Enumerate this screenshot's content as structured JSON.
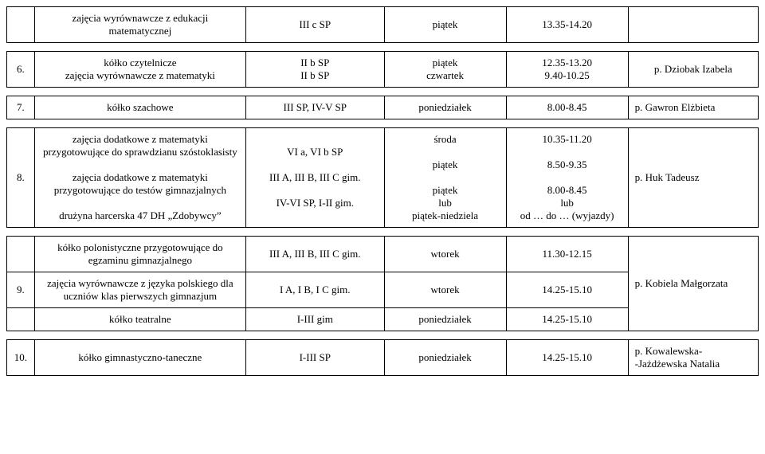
{
  "table": {
    "font_family": "Times New Roman",
    "font_size_pt": 10,
    "border_color": "#000000",
    "background_color": "#ffffff",
    "text_color": "#000000",
    "column_roles": [
      "num",
      "desc",
      "group",
      "day",
      "time",
      "teacher"
    ],
    "blocks": [
      {
        "rows": [
          {
            "num": "",
            "desc": "zajęcia wyrównawcze z edukacji matematycznej",
            "group": "III c SP",
            "day": "piątek",
            "time": "13.35-14.20",
            "teacher": ""
          }
        ]
      },
      {
        "rows": [
          {
            "num": "6.",
            "desc": "kółko czytelnicze\nzajęcia wyrównawcze z matematyki",
            "group": "II b SP\nII b SP",
            "day": "piątek\nczwartek",
            "time": "12.35-13.20\n9.40-10.25",
            "teacher": "p. Dziobak Izabela"
          }
        ]
      },
      {
        "rows": [
          {
            "num": "7.",
            "desc": "kółko szachowe",
            "group": "III  SP, IV-V SP",
            "day": "poniedziałek",
            "time": "8.00-8.45",
            "teacher": "p. Gawron Elżbieta"
          }
        ]
      },
      {
        "rows": [
          {
            "num": "8.",
            "desc": "zajęcia dodatkowe z matematyki przygotowujące do sprawdzianu szóstoklasisty\n\nzajęcia dodatkowe z matematyki przygotowujące do testów gimnazjalnych\n\ndrużyna harcerska 47 DH „Zdobywcy”",
            "group": "VI a, VI b SP\n\nIII A, III B, III C gim.\n\nIV-VI SP, I-II gim.",
            "day": "środa\n\npiątek\n\npiątek\nlub\npiątek-niedziela",
            "time": "10.35-11.20\n\n8.50-9.35\n\n8.00-8.45\nlub\nod …  do … (wyjazdy)",
            "teacher": "p. Huk Tadeusz"
          }
        ]
      },
      {
        "rows": [
          {
            "num": "",
            "desc": "kółko polonistyczne przygotowujące do egzaminu gimnazjalnego",
            "group": "III A, III B, III C gim.",
            "day": "wtorek",
            "time": "11.30-12.15",
            "teacher": "",
            "teacher_rowspan": 3,
            "teacher_text": "p. Kobiela Małgorzata"
          },
          {
            "num": "9.",
            "desc": "zajęcia wyrównawcze z języka polskiego dla uczniów klas pierwszych gimnazjum",
            "group": "I A, I B, I C gim.",
            "day": "wtorek",
            "time": "14.25-15.10"
          },
          {
            "num": "",
            "desc": "kółko teatralne",
            "group": "I-III gim",
            "day": "poniedziałek",
            "time": "14.25-15.10"
          }
        ]
      },
      {
        "rows": [
          {
            "num": "10.",
            "desc": "kółko gimnastyczno-taneczne",
            "group": "I-III SP",
            "day": "poniedziałek",
            "time": "14.25-15.10",
            "teacher": "p. Kowalewska-\n-Jażdżewska Natalia"
          }
        ]
      }
    ]
  }
}
